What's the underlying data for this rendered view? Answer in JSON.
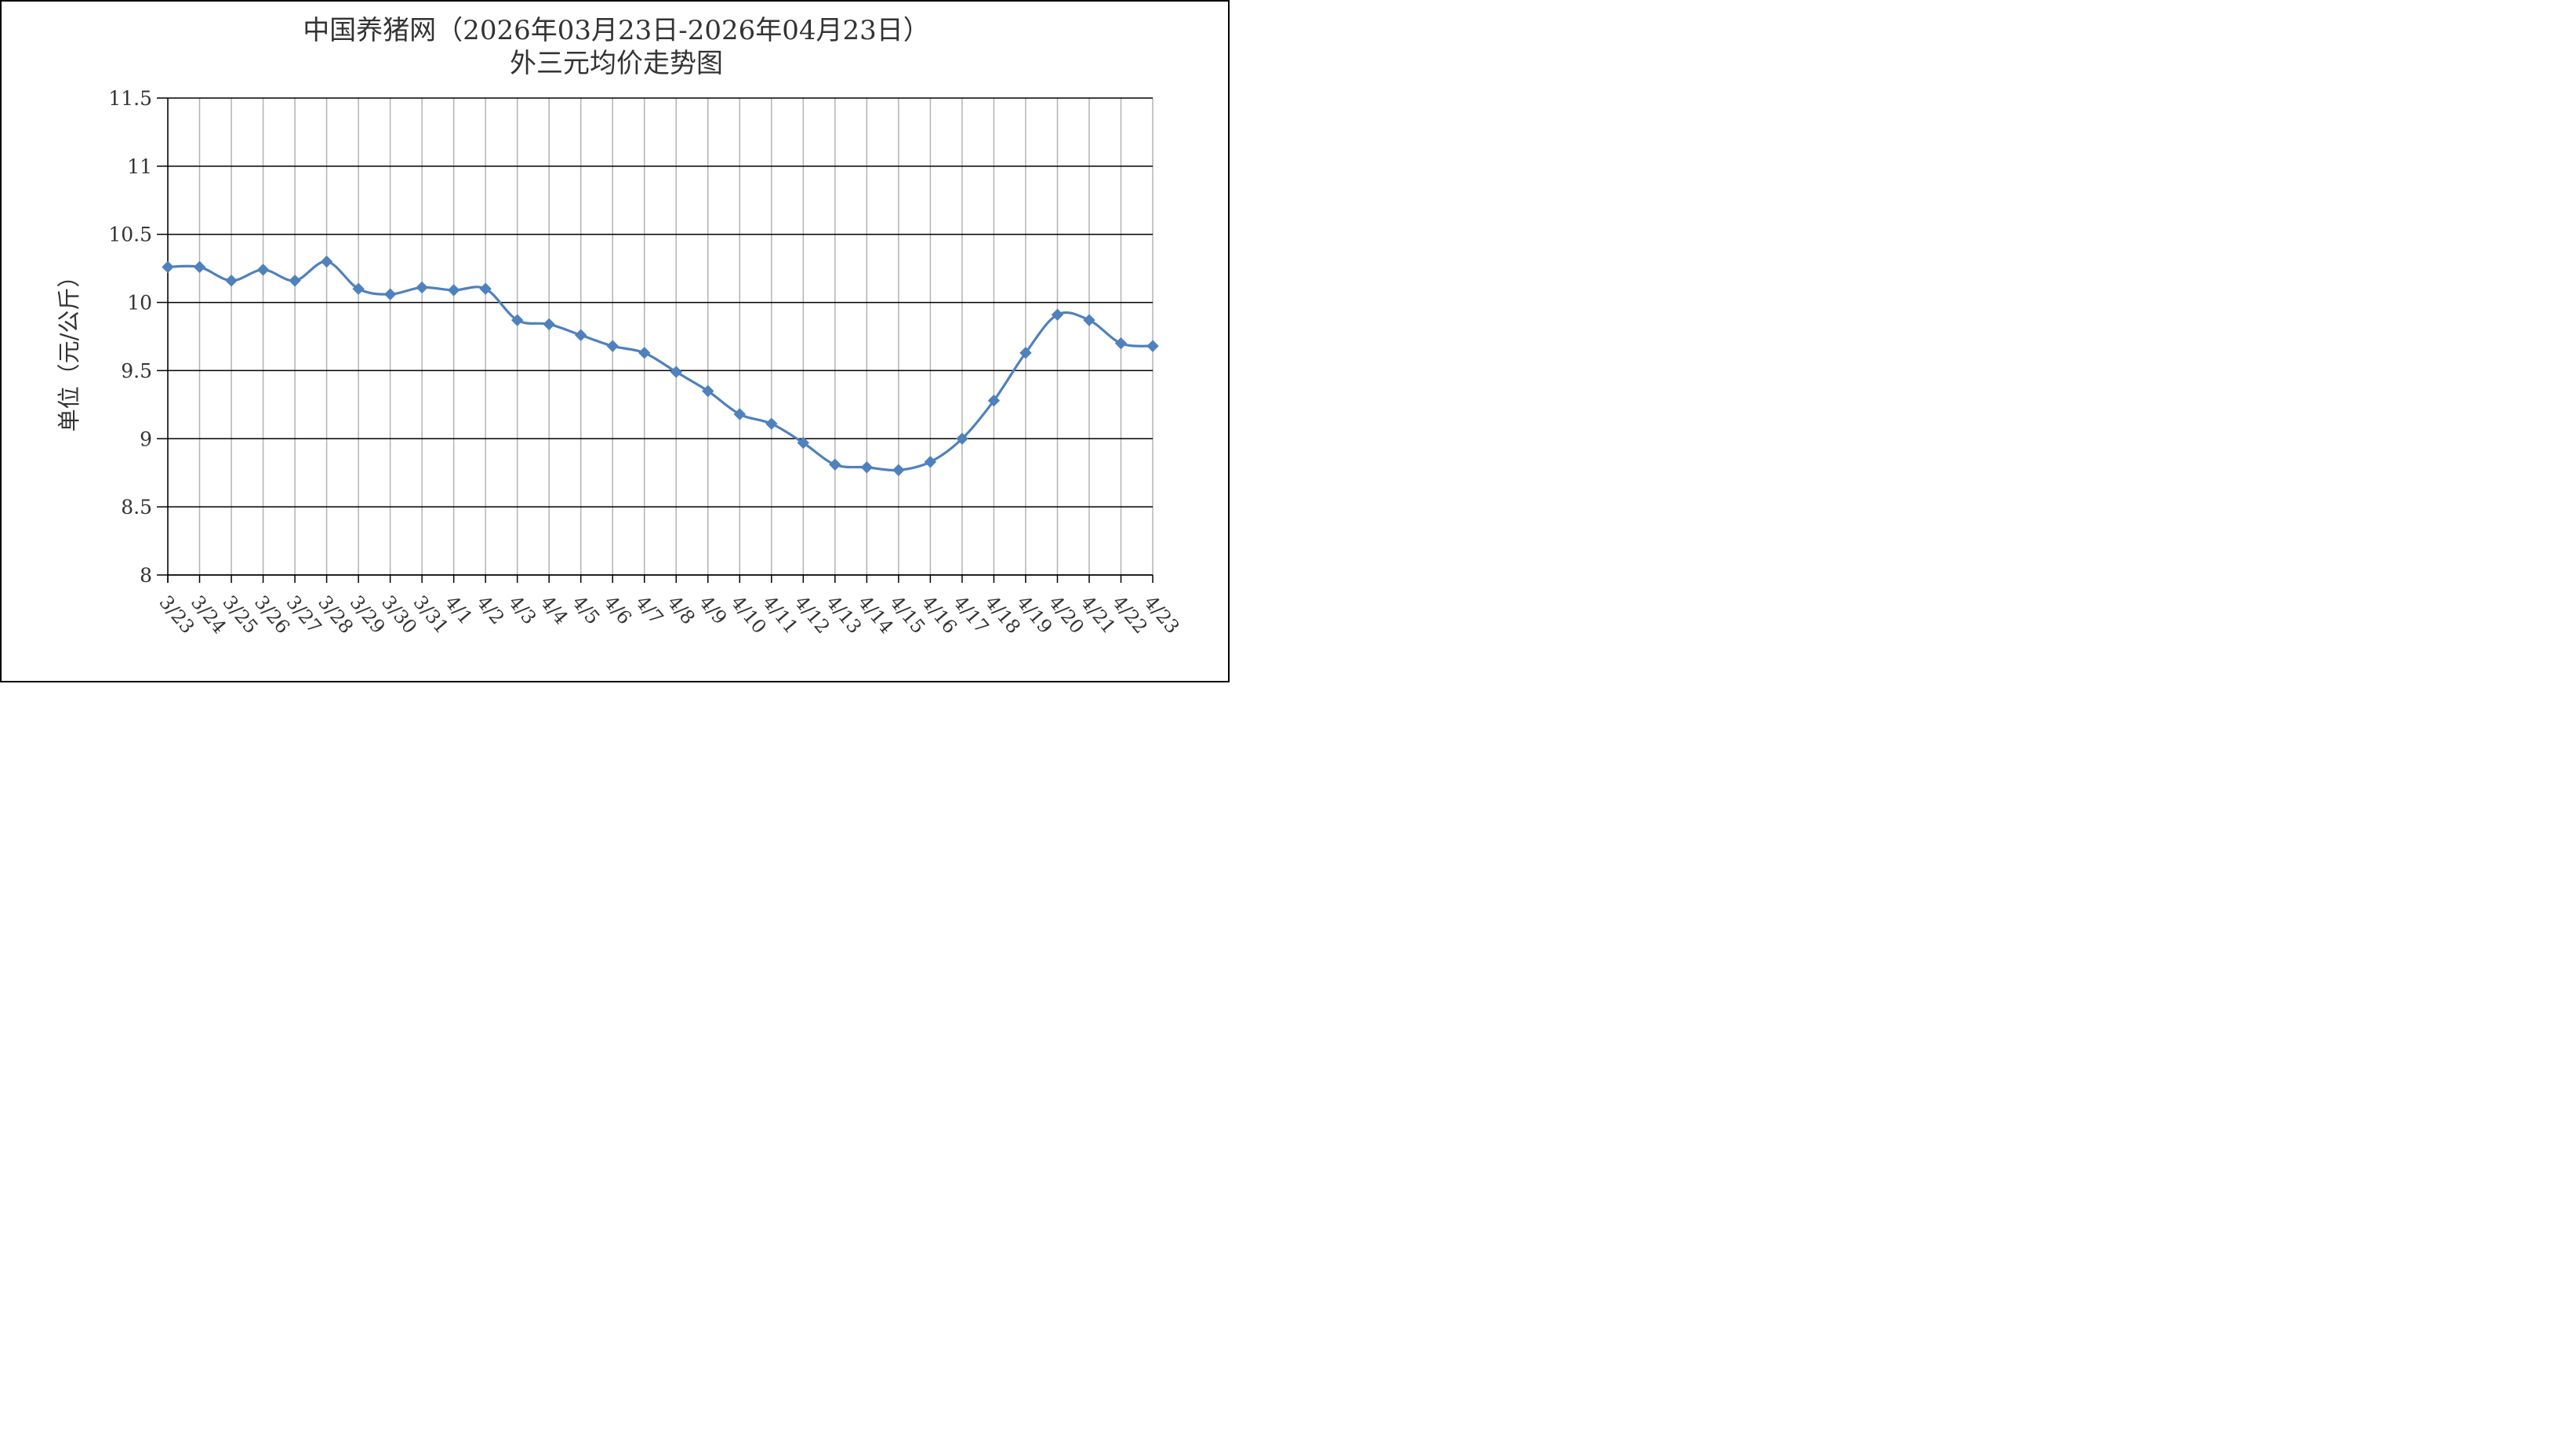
{
  "chart_data": {
    "type": "line",
    "title_line1": "中国养猪网（2026年03月23日-2026年04月23日）",
    "title_line2": "外三元均价走势图",
    "ylabel": "单位（元/公斤）",
    "xlabel": "",
    "ylim": [
      8,
      11.5
    ],
    "ytick_labels": [
      "11.5",
      "11",
      "10.5",
      "10",
      "9.5",
      "9",
      "8.5",
      "8"
    ],
    "ytick_values": [
      11.5,
      11,
      10.5,
      10,
      9.5,
      9,
      8.5,
      8
    ],
    "categories": [
      "3/23",
      "3/24",
      "3/25",
      "3/26",
      "3/27",
      "3/28",
      "3/29",
      "3/30",
      "3/31",
      "4/1",
      "4/2",
      "4/3",
      "4/4",
      "4/5",
      "4/6",
      "4/7",
      "4/8",
      "4/9",
      "4/10",
      "4/11",
      "4/12",
      "4/13",
      "4/14",
      "4/15",
      "4/16",
      "4/17",
      "4/18",
      "4/19",
      "4/20",
      "4/21",
      "4/22",
      "4/23"
    ],
    "series": [
      {
        "values": [
          10.26,
          10.26,
          10.16,
          10.24,
          10.16,
          10.3,
          10.1,
          10.06,
          10.11,
          10.09,
          10.1,
          9.87,
          9.84,
          9.76,
          9.68,
          9.63,
          9.49,
          9.35,
          9.18,
          9.11,
          8.97,
          8.81,
          8.79,
          8.77,
          8.83,
          9.0,
          9.28,
          9.63,
          9.91,
          9.87,
          9.7,
          9.68
        ],
        "color": "#4f81bd",
        "marker": "diamond",
        "smooth": true
      }
    ],
    "grid": true,
    "legend": "none",
    "colors": {
      "line": "#4f81bd",
      "grid_h": "#000000",
      "grid_v": "#b3b3b3",
      "text": "#333333"
    }
  }
}
